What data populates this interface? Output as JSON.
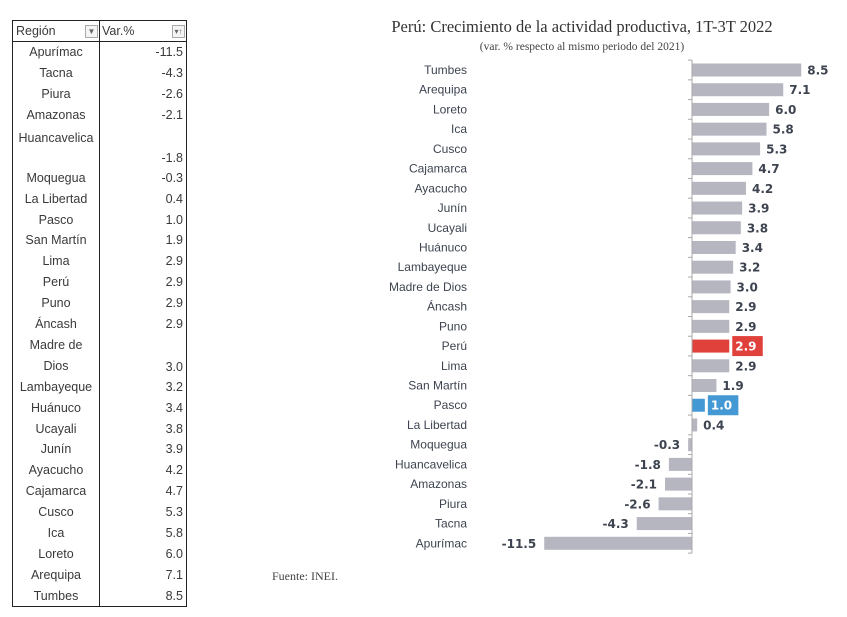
{
  "table": {
    "headers": [
      "Región",
      "Var.%"
    ],
    "filter_icons": [
      "dropdown-filter-icon",
      "sort-ascending-icon"
    ],
    "rows": [
      {
        "region": "Apurímac",
        "value": "-11.5"
      },
      {
        "region": "Tacna",
        "value": "-4.3"
      },
      {
        "region": "Piura",
        "value": "-2.6"
      },
      {
        "region": "Amazonas",
        "value": "-2.1"
      },
      {
        "region": "Huancavelica",
        "value": "-1.8",
        "tall": true
      },
      {
        "region": "Moquegua",
        "value": "-0.3"
      },
      {
        "region": "La Libertad",
        "value": "0.4"
      },
      {
        "region": "Pasco",
        "value": "1.0"
      },
      {
        "region": "San Martín",
        "value": "1.9"
      },
      {
        "region": "Lima",
        "value": "2.9"
      },
      {
        "region": "Perú",
        "value": "2.9"
      },
      {
        "region": "Puno",
        "value": "2.9"
      },
      {
        "region": "Áncash",
        "value": "2.9"
      },
      {
        "region": "Madre de Dios",
        "region_lines": [
          "Madre de",
          "Dios"
        ],
        "value": "3.0",
        "tall": true
      },
      {
        "region": "Lambayeque",
        "value": "3.2"
      },
      {
        "region": "Huánuco",
        "value": "3.4"
      },
      {
        "region": "Ucayali",
        "value": "3.8"
      },
      {
        "region": "Junín",
        "value": "3.9"
      },
      {
        "region": "Ayacucho",
        "value": "4.2"
      },
      {
        "region": "Cajamarca",
        "value": "4.7"
      },
      {
        "region": "Cusco",
        "value": "5.3"
      },
      {
        "region": "Ica",
        "value": "5.8"
      },
      {
        "region": "Loreto",
        "value": "6.0"
      },
      {
        "region": "Arequipa",
        "value": "7.1"
      },
      {
        "region": "Tumbes",
        "value": "8.5"
      }
    ]
  },
  "chart_data": {
    "type": "bar",
    "orientation": "horizontal",
    "title": "Perú: Crecimiento de la actividad productiva, 1T-3T 2022",
    "subtitle": "(var. % respecto al mismo periodo del 2021)",
    "xlabel": "",
    "ylabel": "",
    "xlim": [
      -11.5,
      8.5
    ],
    "grid": false,
    "legend": "none",
    "categories": [
      "Tumbes",
      "Arequipa",
      "Loreto",
      "Ica",
      "Cusco",
      "Cajamarca",
      "Ayacucho",
      "Junín",
      "Ucayali",
      "Huánuco",
      "Lambayeque",
      "Madre de Dios",
      "Áncash",
      "Puno",
      "Perú",
      "Lima",
      "San Martín",
      "Pasco",
      "La Libertad",
      "Moquegua",
      "Huancavelica",
      "Amazonas",
      "Piura",
      "Tacna",
      "Apurímac"
    ],
    "values": [
      8.5,
      7.1,
      6.0,
      5.8,
      5.3,
      4.7,
      4.2,
      3.9,
      3.8,
      3.4,
      3.2,
      3.0,
      2.9,
      2.9,
      2.9,
      2.9,
      1.9,
      1.0,
      0.4,
      -0.3,
      -1.8,
      -2.1,
      -2.6,
      -4.3,
      -11.5
    ],
    "labels": [
      "8.5",
      "7.1",
      "6.0",
      "5.8",
      "5.3",
      "4.7",
      "4.2",
      "3.9",
      "3.8",
      "3.4",
      "3.2",
      "3.0",
      "2.9",
      "2.9",
      "2.9",
      "2.9",
      "1.9",
      "1.0",
      "0.4",
      "-0.3",
      "-1.8",
      "-2.1",
      "-2.6",
      "-4.3",
      "-11.5"
    ],
    "colors": {
      "default": "#b5b6bf",
      "Perú": "#e0413a",
      "Pasco": "#4499d4"
    },
    "highlighted_labels": [
      "Perú",
      "Pasco"
    ],
    "source": "Fuente: INEI."
  }
}
